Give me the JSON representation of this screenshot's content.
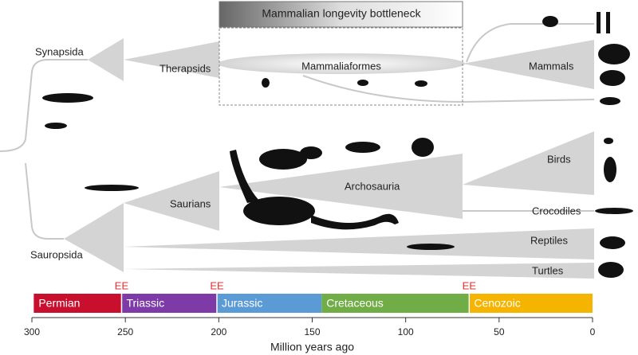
{
  "header": {
    "bottleneck": "Mammalian longevity bottleneck"
  },
  "clades": {
    "synapsida": "Synapsida",
    "therapsids": "Therapsids",
    "mammaliaformes": "Mammaliaformes",
    "mammals": "Mammals",
    "sauropsida": "Sauropsida",
    "saurians": "Saurians",
    "archosauria": "Archosauria",
    "birds": "Birds",
    "crocodiles": "Crocodiles",
    "reptiles": "Reptiles",
    "turtles": "Turtles"
  },
  "timeline": {
    "xlim": [
      300,
      0
    ],
    "xticks": [
      300,
      250,
      200,
      150,
      100,
      50,
      0
    ],
    "xlabel": "Million years ago",
    "periods": [
      {
        "name": "Permian",
        "start": 299,
        "end": 252,
        "color": "#c8102e"
      },
      {
        "name": "Triassic",
        "start": 252,
        "end": 201,
        "color": "#7e3aa6"
      },
      {
        "name": "Jurassic",
        "start": 201,
        "end": 145,
        "color": "#5b9bd5"
      },
      {
        "name": "Cretaceous",
        "start": 145,
        "end": 66,
        "color": "#70ad47"
      },
      {
        "name": "Cenozoic",
        "start": 66,
        "end": 0,
        "color": "#f5b400"
      }
    ],
    "extinctions": [
      {
        "label": "EE",
        "value": 252
      },
      {
        "label": "EE",
        "value": 201
      },
      {
        "label": "EE",
        "value": 66
      }
    ]
  }
}
